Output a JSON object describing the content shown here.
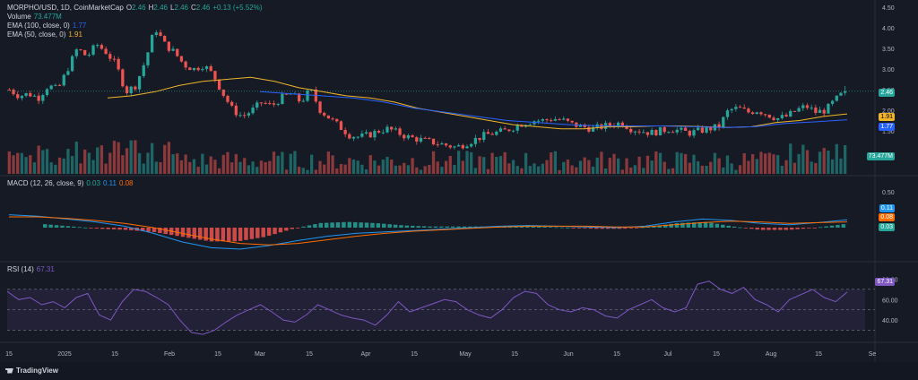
{
  "header": {
    "symbol": "MORPHO/USD, 1D, CoinMarketCap",
    "o_label": "O",
    "o": "2.46",
    "h_label": "H",
    "h": "2.46",
    "l_label": "L",
    "l": "2.46",
    "c_label": "C",
    "c": "2.46",
    "change": "+0.13 (+5.52%)"
  },
  "legends": {
    "volume_label": "Volume",
    "volume_value": "73.477M",
    "ema100_label": "EMA (100, close, 0)",
    "ema100_value": "1.77",
    "ema50_label": "EMA (50, close, 0)",
    "ema50_value": "1.91",
    "macd_label": "MACD (12, 26, close, 9)",
    "macd_hist": "0.03",
    "macd_line": "0.11",
    "macd_signal": "0.08",
    "rsi_label": "RSI (14)",
    "rsi_value": "67.31"
  },
  "badges": {
    "price": "2.46",
    "ema50": "1.91",
    "ema100": "1.77",
    "volume": "73.477M",
    "macd_line": "0.11",
    "macd_signal": "0.08",
    "macd_hist": "0.03",
    "rsi": "67.31"
  },
  "footer": {
    "brand": "TradingView"
  },
  "colors": {
    "up": "#26a69a",
    "down": "#ef5350",
    "ema50": "#f0b429",
    "ema100": "#2962ff",
    "macd": "#2196f3",
    "signal": "#ff6d00",
    "rsi": "#7e57c2",
    "background": "#161a25"
  },
  "chart_data": {
    "type": "candlestick",
    "price_axis": {
      "ticks": [
        "4.50",
        "4.00",
        "3.50",
        "3.00",
        "2.50",
        "2.00",
        "1.50"
      ],
      "range": [
        1.0,
        4.5
      ]
    },
    "macd_axis": {
      "ticks": [
        "0.50"
      ]
    },
    "rsi_axis": {
      "ticks": [
        "80.00",
        "60.00",
        "40.00"
      ],
      "range": [
        20,
        90
      ],
      "bands": [
        30,
        50,
        70
      ]
    },
    "x_ticks": [
      "15",
      "2025",
      "15",
      "Feb",
      "15",
      "Mar",
      "15",
      "Apr",
      "15",
      "May",
      "15",
      "Jun",
      "15",
      "Jul",
      "15",
      "Aug",
      "15",
      "Se"
    ],
    "close_path": [
      2.5,
      2.35,
      2.4,
      2.3,
      2.6,
      2.5,
      3.0,
      3.5,
      3.3,
      3.6,
      3.4,
      3.1,
      2.45,
      2.6,
      3.2,
      4.0,
      3.6,
      3.4,
      3.1,
      3.0,
      3.1,
      2.85,
      2.4,
      2.0,
      1.85,
      2.0,
      2.2,
      2.1,
      2.3,
      2.4,
      2.2,
      2.5,
      2.0,
      1.8,
      1.6,
      1.4,
      1.35,
      1.4,
      1.5,
      1.55,
      1.45,
      1.35,
      1.3,
      1.25,
      1.2,
      1.15,
      1.1,
      1.2,
      1.3,
      1.4,
      1.45,
      1.5,
      1.6,
      1.7,
      1.75,
      1.75,
      1.8,
      1.75,
      1.65,
      1.6,
      1.55,
      1.6,
      1.65,
      1.7,
      1.55,
      1.5,
      1.45,
      1.5,
      1.55,
      1.5,
      1.45,
      1.5,
      1.55,
      1.6,
      2.0,
      2.05,
      1.95,
      2.0,
      1.9,
      1.8,
      1.85,
      2.0,
      2.1,
      1.95,
      2.0,
      2.25,
      2.46
    ],
    "ema50_path": [
      2.3,
      2.35,
      2.45,
      2.6,
      2.7,
      2.75,
      2.8,
      2.7,
      2.55,
      2.45,
      2.35,
      2.3,
      2.2,
      2.05,
      1.95,
      1.85,
      1.75,
      1.65,
      1.6,
      1.55,
      1.55,
      1.6,
      1.6,
      1.62,
      1.62,
      1.6,
      1.58,
      1.6,
      1.7,
      1.75,
      1.85,
      1.91
    ],
    "ema100_path": [
      2.45,
      2.4,
      2.35,
      2.3,
      2.2,
      2.05,
      1.95,
      1.85,
      1.75,
      1.7,
      1.65,
      1.62,
      1.62,
      1.62,
      1.6,
      1.58,
      1.6,
      1.68,
      1.72,
      1.77
    ],
    "rsi_path": [
      68,
      60,
      62,
      55,
      58,
      52,
      62,
      66,
      45,
      40,
      58,
      70,
      68,
      62,
      55,
      40,
      28,
      26,
      30,
      38,
      45,
      50,
      55,
      48,
      40,
      38,
      45,
      55,
      50,
      45,
      42,
      40,
      35,
      45,
      58,
      48,
      52,
      56,
      60,
      58,
      50,
      45,
      42,
      50,
      62,
      68,
      66,
      55,
      50,
      48,
      52,
      50,
      44,
      42,
      50,
      55,
      60,
      52,
      48,
      52,
      75,
      78,
      70,
      66,
      72,
      60,
      55,
      48,
      60,
      65,
      70,
      62,
      58,
      67.31
    ],
    "macd_path": [
      0.18,
      0.16,
      0.12,
      0.08,
      0.02,
      -0.08,
      -0.2,
      -0.28,
      -0.3,
      -0.25,
      -0.18,
      -0.12,
      -0.08,
      -0.06,
      -0.04,
      -0.02,
      0.0,
      0.02,
      0.03,
      0.02,
      0.01,
      0.0,
      0.02,
      0.08,
      0.12,
      0.1,
      0.06,
      0.04,
      0.07,
      0.11
    ],
    "signal_path": [
      0.15,
      0.15,
      0.13,
      0.1,
      0.06,
      0.0,
      -0.08,
      -0.16,
      -0.22,
      -0.24,
      -0.22,
      -0.17,
      -0.12,
      -0.08,
      -0.05,
      -0.03,
      -0.01,
      0.01,
      0.02,
      0.02,
      0.02,
      0.01,
      0.01,
      0.04,
      0.07,
      0.09,
      0.08,
      0.06,
      0.07,
      0.08
    ]
  }
}
